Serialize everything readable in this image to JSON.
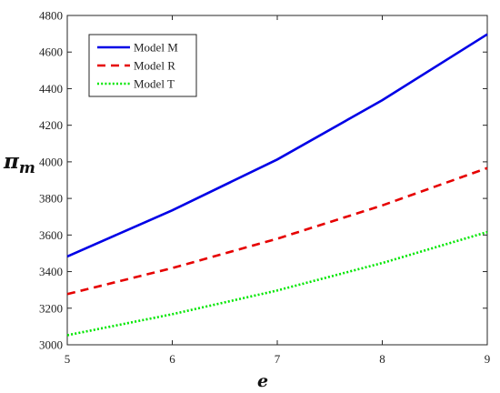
{
  "chart_data": {
    "type": "line",
    "xlabel": "e",
    "ylabel": "π",
    "ylabel_sub": "m",
    "xlim": [
      5,
      9
    ],
    "ylim": [
      3000,
      4800
    ],
    "xticks": [
      5,
      6,
      7,
      8,
      9
    ],
    "yticks": [
      3000,
      3200,
      3400,
      3600,
      3800,
      4000,
      4200,
      4400,
      4600,
      4800
    ],
    "grid": false,
    "legend_position": "top-left",
    "series": [
      {
        "name": "Model M",
        "color": "#0000e6",
        "style": "solid",
        "x": [
          5,
          6,
          7,
          8,
          9
        ],
        "values": [
          3483,
          3735,
          4013,
          4337,
          4697
        ]
      },
      {
        "name": "Model R",
        "color": "#e60000",
        "style": "dashed",
        "x": [
          5,
          6,
          7,
          8,
          9
        ],
        "values": [
          3277,
          3419,
          3580,
          3762,
          3966
        ]
      },
      {
        "name": "Model T",
        "color": "#00e600",
        "style": "dotted",
        "x": [
          5,
          6,
          7,
          8,
          9
        ],
        "values": [
          3052,
          3167,
          3297,
          3447,
          3616
        ]
      }
    ]
  }
}
